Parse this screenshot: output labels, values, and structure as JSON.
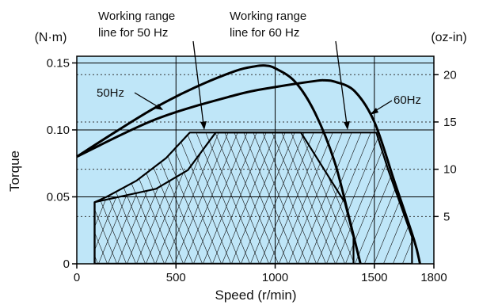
{
  "chart_data": {
    "type": "line",
    "title": "",
    "xlabel": "Speed (r/min)",
    "ylabel": "Torque",
    "ylabel_unit_left": "(N·m)",
    "ylabel_unit_right": "(oz-in)",
    "xlim": [
      0,
      1800
    ],
    "ylim": [
      0,
      0.155
    ],
    "y2lim": [
      0,
      21.95
    ],
    "xticks": [
      0,
      500,
      1000,
      1500,
      1800
    ],
    "yticks": [
      0,
      0.05,
      0.1,
      0.15
    ],
    "ytick_labels": [
      "0",
      "0.05",
      "0.10",
      "0.15"
    ],
    "y2ticks": [
      5,
      10,
      15,
      20
    ],
    "grid": true,
    "background_color": "#bfe6f8",
    "series": [
      {
        "name": "50Hz",
        "x": [
          0,
          200,
          400,
          600,
          800,
          900,
          950,
          1000,
          1100,
          1200,
          1300,
          1380,
          1430
        ],
        "y": [
          0.08,
          0.099,
          0.117,
          0.132,
          0.144,
          0.1475,
          0.148,
          0.146,
          0.136,
          0.113,
          0.076,
          0.03,
          0
        ]
      },
      {
        "name": "60Hz",
        "x": [
          0,
          400,
          800,
          1000,
          1200,
          1250,
          1300,
          1400,
          1500,
          1600,
          1700,
          1730
        ],
        "y": [
          0.08,
          0.108,
          0.126,
          0.132,
          0.1365,
          0.137,
          0.136,
          0.129,
          0.106,
          0.062,
          0.018,
          0
        ]
      }
    ],
    "working_range_50hz": {
      "x": [
        90,
        90,
        150,
        300,
        450,
        570,
        1130,
        1350,
        1395,
        1395
      ],
      "y": [
        0,
        0.046,
        0.05,
        0.062,
        0.079,
        0.098,
        0.098,
        0.046,
        0.02,
        0
      ]
    },
    "working_range_60hz": {
      "x": [
        90,
        90,
        150,
        400,
        560,
        700,
        1510,
        1570,
        1690,
        1690
      ],
      "y": [
        0,
        0.046,
        0.048,
        0.056,
        0.07,
        0.098,
        0.098,
        0.07,
        0.02,
        0
      ]
    },
    "annotations": [
      {
        "text": "50Hz",
        "target": "50Hz"
      },
      {
        "text": "60Hz",
        "target": "60Hz"
      },
      {
        "text": "Working range line for 50 Hz",
        "lines": [
          "Working range",
          "line for 50 Hz"
        ]
      },
      {
        "text": "Working range line for 60 Hz",
        "lines": [
          "Working range",
          "line for 60 Hz"
        ]
      }
    ]
  }
}
